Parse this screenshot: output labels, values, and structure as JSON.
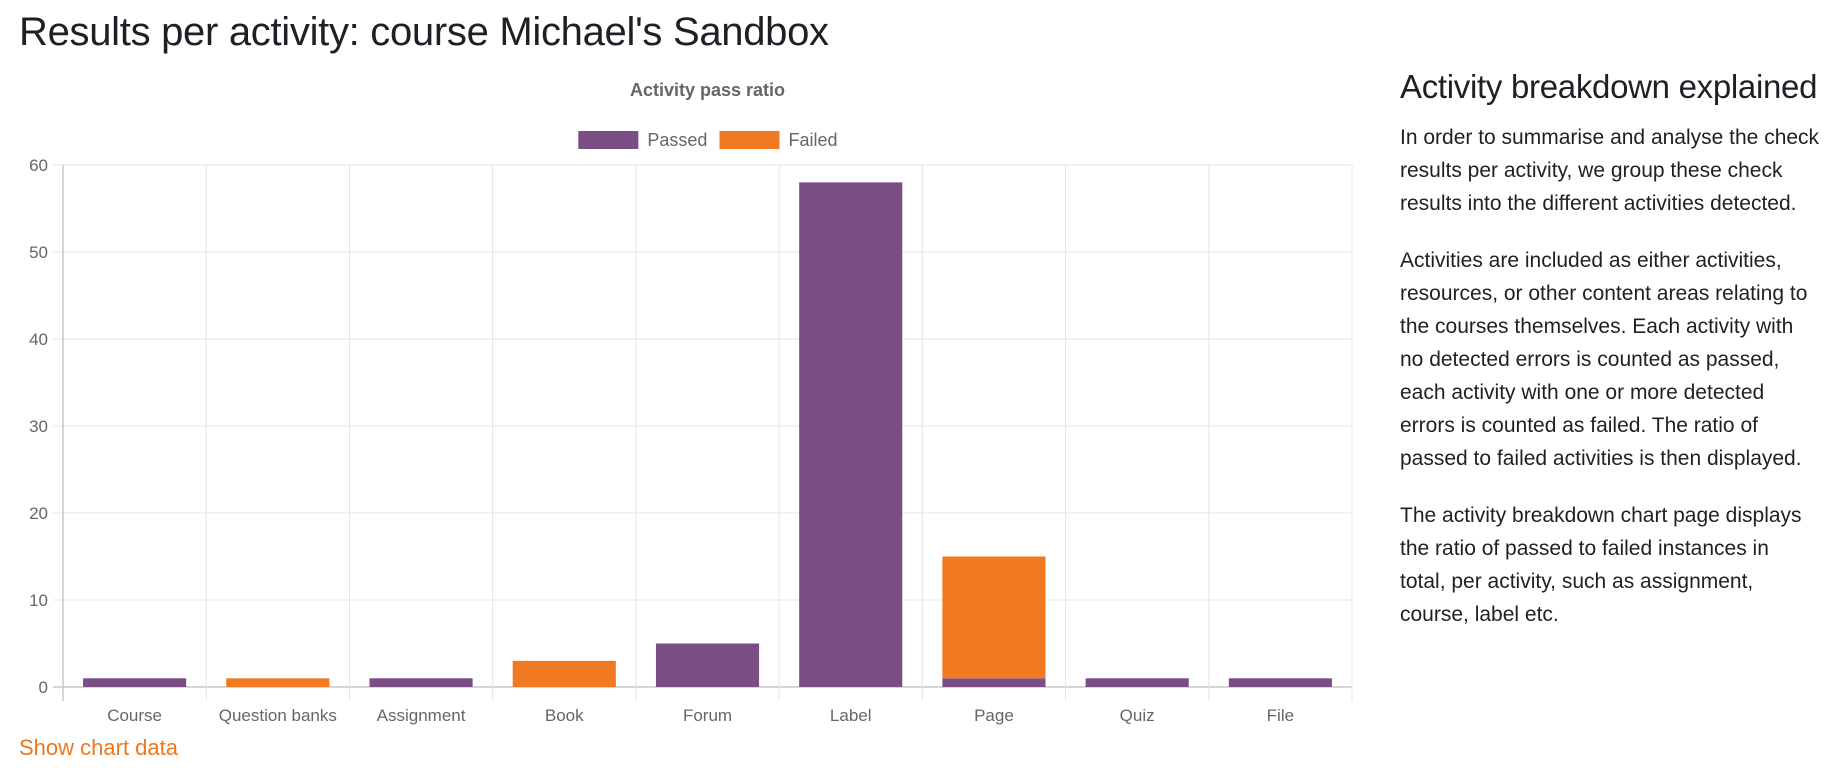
{
  "page": {
    "title": "Results per activity: course Michael's Sandbox",
    "show_chart_data_label": "Show chart data"
  },
  "explainer": {
    "title": "Activity breakdown explained",
    "paragraphs": [
      "In order to summarise and analyse the check results per activity, we group these check results into the different activities detected.",
      "Activities are included as either activities, resources, or other content areas relating to the courses themselves. Each activity with no detected errors is counted as passed, each activity with one or more detected errors is counted as failed. The ratio of passed to failed activities is then displayed.",
      "The activity breakdown chart page displays the ratio of passed to failed instances in total, per activity, such as assignment, course, label etc."
    ]
  },
  "chart_data": {
    "type": "bar",
    "stacked": true,
    "title": "Activity pass ratio",
    "xlabel": "",
    "ylabel": "",
    "categories": [
      "Course",
      "Question banks",
      "Assignment",
      "Book",
      "Forum",
      "Label",
      "Page",
      "Quiz",
      "File"
    ],
    "series": [
      {
        "name": "Passed",
        "color": "#7a4d85",
        "values": [
          1,
          0,
          1,
          0,
          5,
          58,
          1,
          1,
          1
        ]
      },
      {
        "name": "Failed",
        "color": "#f07921",
        "values": [
          0,
          1,
          0,
          3,
          0,
          0,
          14,
          0,
          0
        ]
      }
    ],
    "ylim": [
      0,
      60
    ],
    "yticks": [
      0,
      10,
      20,
      30,
      40,
      50,
      60
    ],
    "grid": true,
    "legend_position": "top"
  }
}
